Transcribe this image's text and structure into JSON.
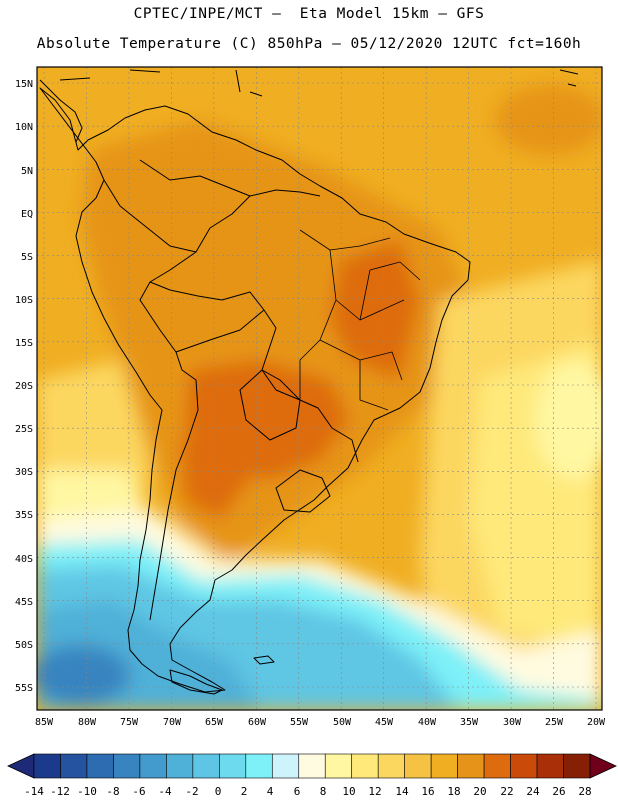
{
  "header": {
    "title_line1": "CPTEC/INPE/MCT –  Eta Model 15km – GFS",
    "title_line2": "Absolute Temperature (C) 850hPa – 05/12/2020 12UTC fct=160h"
  },
  "map": {
    "lat_labels": [
      "15N",
      "10N",
      "5N",
      "EQ",
      "5S",
      "10S",
      "15S",
      "20S",
      "25S",
      "30S",
      "35S",
      "40S",
      "45S",
      "50S",
      "55S"
    ],
    "lon_labels": [
      "85W",
      "80W",
      "75W",
      "70W",
      "65W",
      "60W",
      "55W",
      "50W",
      "45W",
      "40W",
      "35W",
      "30W",
      "25W",
      "20W"
    ],
    "colors": {
      "land_border": "#000000",
      "grid": "#888888"
    }
  },
  "colorbar": {
    "labels": [
      "-14",
      "-12",
      "-10",
      "-8",
      "-6",
      "-4",
      "-2",
      "0",
      "2",
      "4",
      "6",
      "8",
      "10",
      "12",
      "14",
      "16",
      "18",
      "20",
      "22",
      "24",
      "26",
      "28"
    ],
    "colors": [
      "#1c3a8c",
      "#2553a0",
      "#2d6cb0",
      "#3784c0",
      "#429bcc",
      "#4fb0d8",
      "#5ec6e4",
      "#6ddaee",
      "#7df0f8",
      "#cdf3fb",
      "#fffbe0",
      "#fff7a2",
      "#fee97a",
      "#fcd760",
      "#f6c244",
      "#f0ae22",
      "#e69419",
      "#de6c0e",
      "#c94a09",
      "#a82f07",
      "#862005"
    ],
    "under_color": "#1e2a78",
    "over_color": "#70001a"
  }
}
